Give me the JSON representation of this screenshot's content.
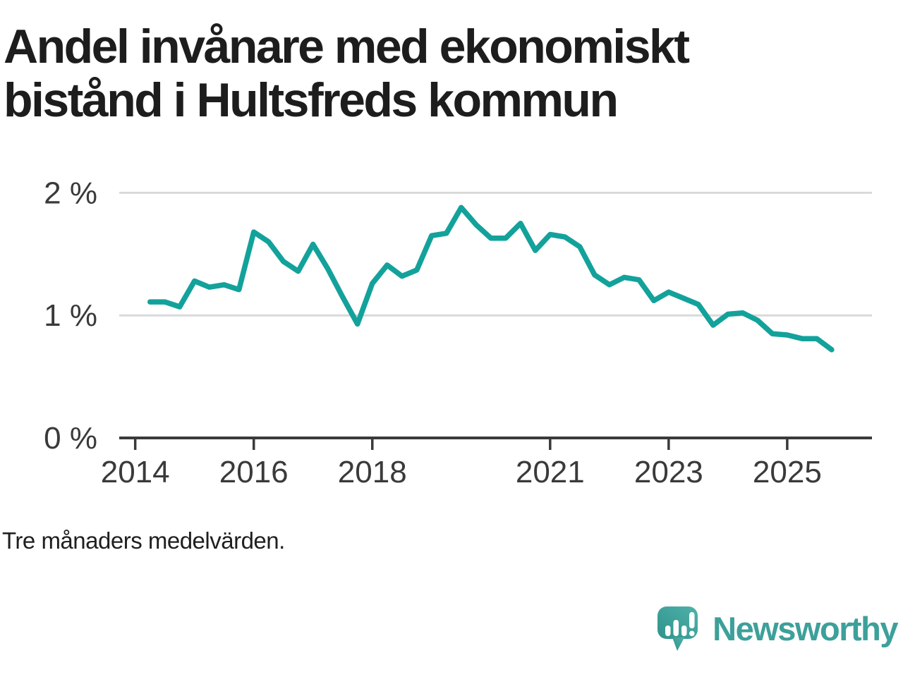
{
  "title": {
    "line1": "Andel invånare med ekonomiskt",
    "line2": "bistånd i Hultsfreds kommun"
  },
  "footnote": "Tre månaders medelvärden.",
  "branding": {
    "name": "Newsworthy",
    "logo_icon": "speech-bubble-bar-chart-exclamation"
  },
  "colors": {
    "background": "#ffffff",
    "line": "#13a29b",
    "grid": "#d9d9d9",
    "axis": "#3a3a3a",
    "tick_text": "#3a3a3a",
    "title_text": "#1d1d1d",
    "logo_teal_light": "#4fb2aa",
    "logo_teal_dark": "#2f928b",
    "logo_text": "#3da09a"
  },
  "chart_data": {
    "type": "line",
    "title": "Andel invånare med ekonomiskt bistånd i Hultsfreds kommun",
    "subtitle": "Tre månaders medelvärden.",
    "xlabel": "",
    "ylabel": "",
    "x_unit": "decimal_year (quarterly points, 3-month averages)",
    "y_unit": "percent of inhabitants",
    "legend": "none",
    "grid": "horizontal",
    "xlim": [
      2013.73,
      2026.43
    ],
    "ylim": [
      0,
      2.3
    ],
    "x_ticks": [
      {
        "value": 2014,
        "label": "2014"
      },
      {
        "value": 2016,
        "label": "2016"
      },
      {
        "value": 2018,
        "label": "2018"
      },
      {
        "value": 2021,
        "label": "2021"
      },
      {
        "value": 2023,
        "label": "2023"
      },
      {
        "value": 2025,
        "label": "2025"
      }
    ],
    "y_ticks": [
      {
        "value": 0,
        "label": "0 %"
      },
      {
        "value": 1,
        "label": "1 %"
      },
      {
        "value": 2,
        "label": "2 %"
      }
    ],
    "x": [
      2014.25,
      2014.5,
      2014.75,
      2015.0,
      2015.25,
      2015.5,
      2015.75,
      2016.0,
      2016.25,
      2016.5,
      2016.75,
      2017.0,
      2017.25,
      2017.5,
      2017.75,
      2018.0,
      2018.25,
      2018.5,
      2018.75,
      2019.0,
      2019.25,
      2019.5,
      2019.75,
      2020.0,
      2020.25,
      2020.5,
      2020.75,
      2021.0,
      2021.25,
      2021.5,
      2021.75,
      2022.0,
      2022.25,
      2022.5,
      2022.75,
      2023.0,
      2023.25,
      2023.5,
      2023.75,
      2024.0,
      2024.25,
      2024.5,
      2024.75,
      2025.0,
      2025.25,
      2025.5,
      2025.75
    ],
    "values": [
      1.11,
      1.11,
      1.07,
      1.28,
      1.23,
      1.25,
      1.21,
      1.68,
      1.6,
      1.44,
      1.36,
      1.58,
      1.38,
      1.15,
      0.93,
      1.26,
      1.41,
      1.32,
      1.37,
      1.65,
      1.67,
      1.88,
      1.74,
      1.63,
      1.63,
      1.75,
      1.53,
      1.66,
      1.64,
      1.56,
      1.33,
      1.25,
      1.31,
      1.29,
      1.12,
      1.19,
      1.14,
      1.09,
      0.92,
      1.01,
      1.02,
      0.96,
      0.85,
      0.84,
      0.81,
      0.81,
      0.72
    ]
  }
}
